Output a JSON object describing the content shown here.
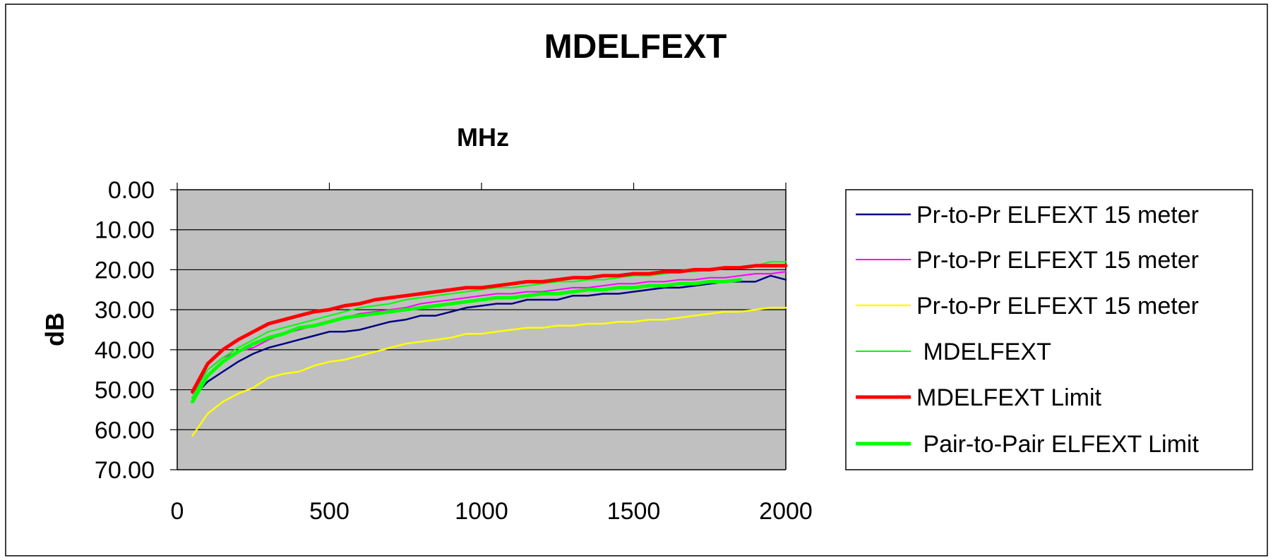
{
  "chart_data": {
    "type": "line",
    "title": "MDELFEXT",
    "xlabel": "MHz",
    "ylabel": "dB",
    "x_axis_position": "top",
    "y_axis_reversed": true,
    "xlim": [
      0,
      2000
    ],
    "ylim": [
      0,
      70
    ],
    "xticks": [
      0,
      500,
      1000,
      1500,
      2000
    ],
    "yticks": [
      0,
      10,
      20,
      30,
      40,
      50,
      60,
      70
    ],
    "xtick_labels": [
      "0",
      "500",
      "1000",
      "1500",
      "2000"
    ],
    "ytick_labels": [
      "0.00",
      "10.00",
      "20.00",
      "30.00",
      "40.00",
      "50.00",
      "60.00",
      "70.00"
    ],
    "grid": "horizontal",
    "plot_background": "#c0c0c0",
    "legend_position": "right",
    "series": [
      {
        "name": "Pr-to-Pr ELFEXT 15 meter",
        "color": "#000080",
        "x": [
          50,
          100,
          150,
          200,
          250,
          300,
          350,
          400,
          450,
          500,
          550,
          600,
          650,
          700,
          750,
          800,
          850,
          900,
          950,
          1000,
          1050,
          1100,
          1150,
          1200,
          1250,
          1300,
          1350,
          1400,
          1450,
          1500,
          1550,
          1600,
          1650,
          1700,
          1750,
          1800,
          1850,
          1900,
          1950,
          2000
        ],
        "y": [
          52,
          48,
          45.5,
          43,
          41,
          39.5,
          38.5,
          37.5,
          36.5,
          35.5,
          35.5,
          35,
          34,
          33,
          32.5,
          31.5,
          31.5,
          30.5,
          29.5,
          29,
          28.5,
          28.5,
          27.5,
          27.5,
          27.5,
          26.5,
          26.5,
          26,
          26,
          25.5,
          25,
          24.5,
          24.5,
          24,
          23.5,
          23,
          23,
          23,
          21.5,
          22.5
        ]
      },
      {
        "name": "Pr-to-Pr ELFEXT 15 meter",
        "color": "#ff00ff",
        "x": [
          50,
          100,
          150,
          200,
          250,
          300,
          350,
          400,
          450,
          500,
          550,
          600,
          650,
          700,
          750,
          800,
          850,
          900,
          950,
          1000,
          1050,
          1100,
          1150,
          1200,
          1250,
          1300,
          1350,
          1400,
          1450,
          1500,
          1550,
          1600,
          1650,
          1700,
          1750,
          1800,
          1850,
          1900,
          1950,
          2000
        ],
        "y": [
          51,
          45,
          42,
          40.5,
          39.5,
          37.5,
          36,
          35,
          34,
          33,
          32,
          31,
          30.5,
          30,
          29.5,
          28.5,
          28,
          27.5,
          27,
          26.5,
          26,
          26,
          25.5,
          25.5,
          25,
          24.5,
          24.5,
          24,
          23.5,
          23.5,
          23,
          23,
          22.5,
          22.5,
          22,
          22,
          21.5,
          21,
          21,
          20.5
        ]
      },
      {
        "name": "Pr-to-Pr ELFEXT 15 meter",
        "color": "#ffff00",
        "x": [
          50,
          100,
          150,
          200,
          250,
          300,
          350,
          400,
          450,
          500,
          550,
          600,
          650,
          700,
          750,
          800,
          850,
          900,
          950,
          1000,
          1050,
          1100,
          1150,
          1200,
          1250,
          1300,
          1350,
          1400,
          1450,
          1500,
          1550,
          1600,
          1650,
          1700,
          1750,
          1800,
          1850,
          1900,
          1950,
          2000
        ],
        "y": [
          61.5,
          56,
          53,
          51,
          49.5,
          47,
          46,
          45.5,
          44,
          43,
          42.5,
          41.5,
          40.5,
          39.5,
          38.5,
          38,
          37.5,
          37,
          36,
          36,
          35.5,
          35,
          34.5,
          34.5,
          34,
          34,
          33.5,
          33.5,
          33,
          33,
          32.5,
          32.5,
          32,
          31.5,
          31,
          30.5,
          30.5,
          30,
          29.5,
          29.5
        ]
      },
      {
        "name": " MDELFEXT",
        "color": "#00ff00",
        "x": [
          50,
          100,
          150,
          200,
          250,
          300,
          350,
          400,
          450,
          500,
          550,
          600,
          650,
          700,
          750,
          800,
          850,
          900,
          950,
          1000,
          1050,
          1100,
          1150,
          1200,
          1250,
          1300,
          1350,
          1400,
          1450,
          1500,
          1550,
          1600,
          1650,
          1700,
          1750,
          1800,
          1850,
          1900,
          1950,
          2000
        ],
        "y": [
          52,
          45,
          42,
          39.5,
          37.5,
          35.5,
          34.5,
          33.5,
          32.5,
          31.5,
          30.5,
          29.5,
          29,
          28.5,
          27.5,
          27,
          26.5,
          26,
          25.5,
          25,
          24.5,
          24.5,
          24,
          23.5,
          23,
          23,
          22.5,
          22.5,
          22,
          21.5,
          21.5,
          21,
          20.5,
          20.5,
          20,
          19.5,
          19.5,
          19,
          18,
          18
        ]
      },
      {
        "name": "MDELFEXT Limit",
        "color": "#ff0000",
        "x": [
          50,
          100,
          150,
          200,
          250,
          300,
          350,
          400,
          450,
          500,
          550,
          600,
          650,
          700,
          750,
          800,
          850,
          900,
          950,
          1000,
          1050,
          1100,
          1150,
          1200,
          1250,
          1300,
          1350,
          1400,
          1450,
          1500,
          1550,
          1600,
          1650,
          1700,
          1750,
          1800,
          1850,
          1900,
          1950,
          2000
        ],
        "y": [
          50.5,
          43.5,
          40,
          37.5,
          35.5,
          33.5,
          32.5,
          31.5,
          30.5,
          30,
          29,
          28.5,
          27.5,
          27,
          26.5,
          26,
          25.5,
          25,
          24.5,
          24.5,
          24,
          23.5,
          23,
          23,
          22.5,
          22,
          22,
          21.5,
          21.5,
          21,
          21,
          20.5,
          20.5,
          20,
          20,
          19.5,
          19.5,
          19,
          19,
          19
        ]
      },
      {
        "name": " Pair-to-Pair ELFEXT Limit",
        "color": "#00ff00",
        "x": [
          50,
          100,
          150,
          200,
          250,
          300,
          350,
          400,
          450,
          500,
          550,
          600,
          650,
          700,
          750,
          800,
          850,
          900,
          950,
          1000,
          1050,
          1100,
          1150,
          1200,
          1250,
          1300,
          1350,
          1400,
          1450,
          1500,
          1550,
          1600,
          1650,
          1700,
          1750,
          1800,
          1850
        ],
        "y": [
          53,
          46.5,
          43,
          40.5,
          38.5,
          37,
          36,
          34.5,
          34,
          33,
          32,
          31.5,
          31,
          30.5,
          30,
          29.5,
          29,
          28.5,
          28,
          27.5,
          27,
          27,
          26.5,
          26,
          26,
          25.5,
          25,
          25,
          24.5,
          24.5,
          24,
          24,
          23.5,
          23.5,
          23,
          23,
          22.5
        ]
      }
    ]
  }
}
